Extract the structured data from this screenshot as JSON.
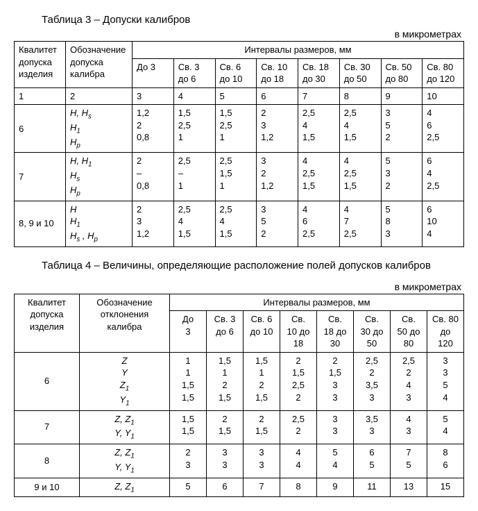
{
  "table3": {
    "title": "Таблица 3 – Допуски калибров",
    "unit": "в микрометрах",
    "head_col1_l1": "Квалитет",
    "head_col1_l2": "допуска",
    "head_col1_l3": "изделия",
    "head_col2_l1": "Обозначение",
    "head_col2_l2": "допуска",
    "head_col2_l3": "калибра",
    "head_span": "Интервалы размеров, мм",
    "cols": [
      "До 3",
      "Св. 3 до 6",
      "Св. 6 до 10",
      "Св. 10 до 18",
      "Св. 18 до 30",
      "Св. 30 до 50",
      "Св. 50 до 80",
      "Св. 80 до 120"
    ],
    "num_row": [
      "1",
      "2",
      "3",
      "4",
      "5",
      "6",
      "7",
      "8",
      "9",
      "10"
    ],
    "r6_q": "6",
    "r6_d1": "H, H_s",
    "r6_d2": "H_1",
    "r6_d3": "H_p",
    "r6": [
      [
        "1,2",
        "2",
        "0,8"
      ],
      [
        "1,5",
        "2,5",
        "1"
      ],
      [
        "1,5",
        "2,5",
        "1"
      ],
      [
        "2",
        "3",
        "1,2"
      ],
      [
        "2,5",
        "4",
        "1,5"
      ],
      [
        "2,5",
        "4",
        "1,5"
      ],
      [
        "3",
        "5",
        "2"
      ],
      [
        "4",
        "6",
        "2,5"
      ]
    ],
    "r7_q": "7",
    "r7_d1": "H, H_1",
    "r7_d2": "H_s",
    "r7_d3": "H_p",
    "r7": [
      [
        "2",
        "–",
        "0,8"
      ],
      [
        "2,5",
        "–",
        "1"
      ],
      [
        "2,5",
        "1,5",
        "1"
      ],
      [
        "3",
        "2",
        "1,2"
      ],
      [
        "4",
        "2,5",
        "1,5"
      ],
      [
        "4",
        "2,5",
        "1,5"
      ],
      [
        "5",
        "3",
        "2"
      ],
      [
        "6",
        "4",
        "2,5"
      ]
    ],
    "r8_q": "8, 9 и 10",
    "r8_d1": "H",
    "r8_d2": "H_1",
    "r8_d3": "H_s , H_p",
    "r8": [
      [
        "2",
        "3",
        "1,2"
      ],
      [
        "2,5",
        "4",
        "1,5"
      ],
      [
        "2,5",
        "4",
        "1,5"
      ],
      [
        "3",
        "5",
        "2"
      ],
      [
        "4",
        "6",
        "2,5"
      ],
      [
        "4",
        "7",
        "2,5"
      ],
      [
        "5",
        "8",
        "3"
      ],
      [
        "6",
        "10",
        "4"
      ]
    ]
  },
  "table4": {
    "title": "Таблица 4 – Величины, определяющие расположение полей допусков калибров",
    "unit": "в микрометрах",
    "head_col1_l1": "Квалитет",
    "head_col1_l2": "допуска",
    "head_col1_l3": "изделия",
    "head_col2_l1": "Обозначение",
    "head_col2_l2": "отклонения",
    "head_col2_l3": "калибра",
    "head_span": "Интервалы размеров, мм",
    "cols_l1": [
      "До",
      "Св. 3",
      "Св. 6",
      "Св.",
      "Св.",
      "Св.",
      "Св.",
      "Св. 80"
    ],
    "cols_l2": [
      "3",
      "до 6",
      "до 10",
      "10 до",
      "18 до",
      "30 до",
      "50 до",
      "до"
    ],
    "cols_l3": [
      "",
      "",
      "",
      "18",
      "30",
      "50",
      "80",
      "120"
    ],
    "r6_q": "6",
    "r6_labels": [
      "Z",
      "Y",
      "Z_1",
      "Y_1"
    ],
    "r6": [
      [
        "1",
        "1",
        "1,5",
        "1,5"
      ],
      [
        "1,5",
        "1",
        "2",
        "1,5"
      ],
      [
        "1,5",
        "1",
        "2",
        "1,5"
      ],
      [
        "2",
        "1,5",
        "2,5",
        "2"
      ],
      [
        "2",
        "1,5",
        "3",
        "3"
      ],
      [
        "2,5",
        "2",
        "3,5",
        "3"
      ],
      [
        "2,5",
        "2",
        "4",
        "3"
      ],
      [
        "3",
        "3",
        "5",
        "4"
      ]
    ],
    "r7_q": "7",
    "r7_labels": [
      "Z, Z_1",
      "Y, Y_1"
    ],
    "r7": [
      [
        "1,5",
        "1,5"
      ],
      [
        "2",
        "1,5"
      ],
      [
        "2",
        "1,5"
      ],
      [
        "2,5",
        "2"
      ],
      [
        "3",
        "3"
      ],
      [
        "3,5",
        "3"
      ],
      [
        "4",
        "3"
      ],
      [
        "5",
        "4"
      ]
    ],
    "r8_q": "8",
    "r8_labels": [
      "Z, Z_1",
      "Y, Y_1"
    ],
    "r8": [
      [
        "2",
        "3"
      ],
      [
        "3",
        "3"
      ],
      [
        "3",
        "3"
      ],
      [
        "4",
        "4"
      ],
      [
        "5",
        "4"
      ],
      [
        "6",
        "5"
      ],
      [
        "7",
        "5"
      ],
      [
        "8",
        "6"
      ]
    ],
    "r9_q": "9 и 10",
    "r9_label": "Z, Z_1",
    "r9": [
      "5",
      "6",
      "7",
      "8",
      "9",
      "11",
      "13",
      "15"
    ]
  }
}
